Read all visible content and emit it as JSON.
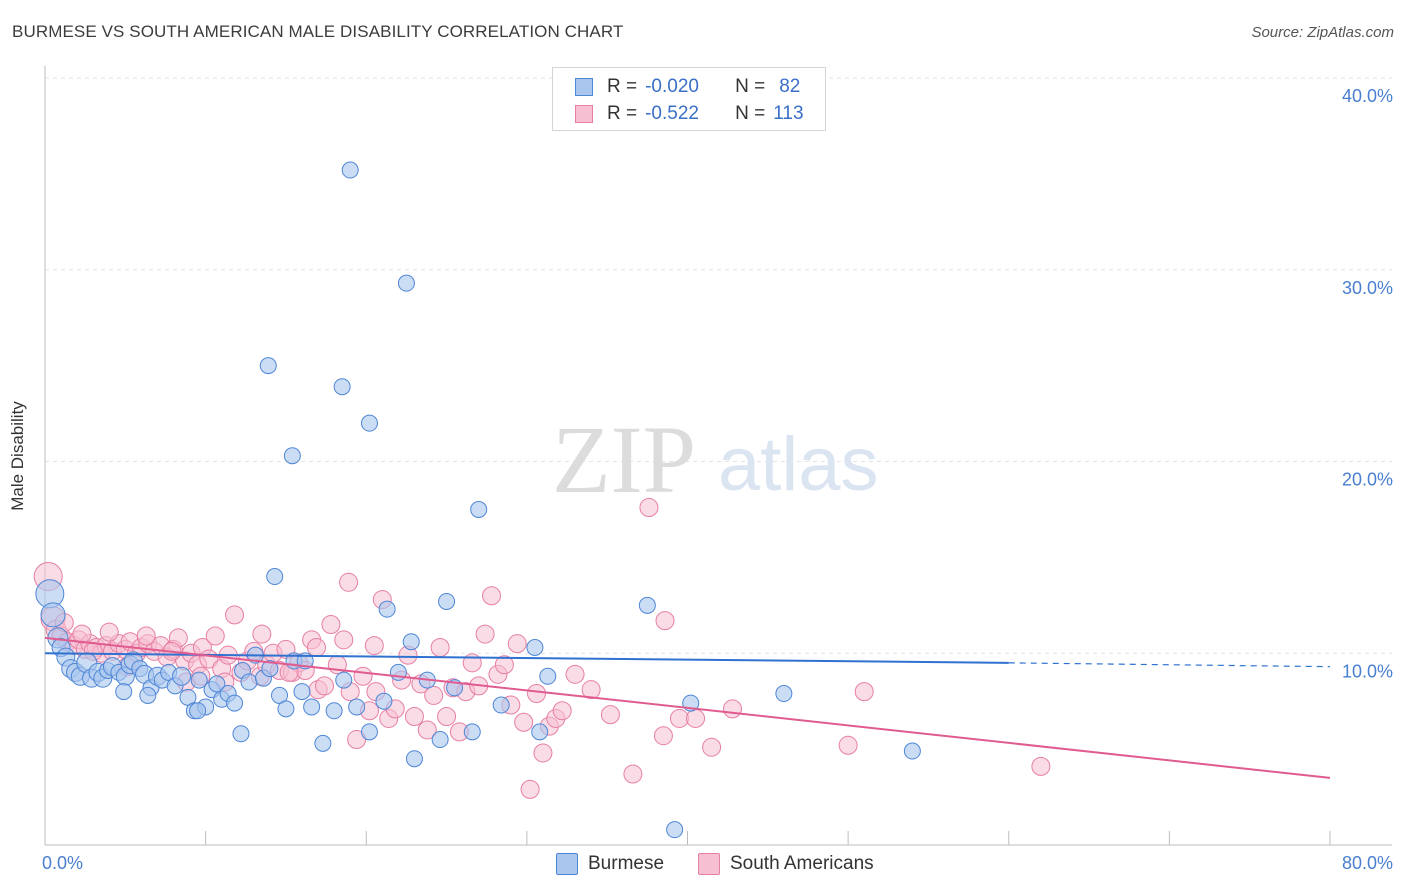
{
  "title": "BURMESE VS SOUTH AMERICAN MALE DISABILITY CORRELATION CHART",
  "source": "Source: ZipAtlas.com",
  "watermark": {
    "zip": "ZIP",
    "atlas": "atlas"
  },
  "legend": {
    "rows": [
      {
        "r_label": "R =",
        "r_value": "-0.020",
        "n_label": "N =",
        "n_value": "82"
      },
      {
        "r_label": "R =",
        "r_value": "-0.522",
        "n_label": "N =",
        "n_value": "113"
      }
    ]
  },
  "bottom_legend": {
    "burmese": "Burmese",
    "south_americans": "South Americans"
  },
  "colors": {
    "burmese_fill": "#a9c6ef",
    "burmese_stroke": "#4e86d6",
    "burmese_line": "#2f72d0",
    "sa_fill": "#f6bfd2",
    "sa_stroke": "#e77fa4",
    "sa_line": "#e05b8f",
    "axis_text": "#4a7fd0",
    "grid": "#e3e3e3"
  },
  "chart_data": {
    "type": "scatter",
    "title": "BURMESE VS SOUTH AMERICAN MALE DISABILITY CORRELATION CHART",
    "xlabel": "",
    "ylabel": "Male Disability",
    "xlim": [
      0,
      80
    ],
    "ylim": [
      0,
      40
    ],
    "x_tick_labels": [
      "0.0%",
      "80.0%"
    ],
    "y_ticks": [
      10,
      20,
      30,
      40
    ],
    "y_tick_labels": [
      "10.0%",
      "20.0%",
      "30.0%",
      "40.0%"
    ],
    "series": [
      {
        "name": "Burmese",
        "r": -0.02,
        "n": 82,
        "trend": {
          "x0": 0,
          "y0": 10.0,
          "x1": 60,
          "y1": 9.5,
          "dash_to_x": 80,
          "dash_to_y": 9.3
        },
        "points": [
          [
            0.3,
            13.1,
            14
          ],
          [
            0.5,
            12.0,
            12
          ],
          [
            0.8,
            10.8,
            10
          ],
          [
            1.0,
            10.3,
            9
          ],
          [
            1.3,
            9.8,
            9
          ],
          [
            1.6,
            9.2,
            9
          ],
          [
            1.9,
            9.0,
            9
          ],
          [
            2.2,
            8.8,
            9
          ],
          [
            2.6,
            9.5,
            10
          ],
          [
            2.9,
            8.7,
            9
          ],
          [
            3.3,
            9.0,
            9
          ],
          [
            3.6,
            8.7,
            9
          ],
          [
            3.9,
            9.1,
            8
          ],
          [
            4.2,
            9.3,
            9
          ],
          [
            4.6,
            9.0,
            8
          ],
          [
            5.0,
            8.8,
            9
          ],
          [
            5.3,
            9.4,
            9
          ],
          [
            5.5,
            9.6,
            9
          ],
          [
            5.9,
            9.2,
            8
          ],
          [
            6.2,
            8.9,
            9
          ],
          [
            6.6,
            8.2,
            8
          ],
          [
            7.0,
            8.8,
            9
          ],
          [
            7.3,
            8.6,
            8
          ],
          [
            7.7,
            9.0,
            8
          ],
          [
            8.1,
            8.3,
            8
          ],
          [
            8.5,
            8.8,
            9
          ],
          [
            8.9,
            7.7,
            8
          ],
          [
            9.3,
            7.0,
            8
          ],
          [
            9.6,
            8.6,
            8
          ],
          [
            10.0,
            7.2,
            8
          ],
          [
            10.4,
            8.1,
            8
          ],
          [
            10.7,
            8.4,
            8
          ],
          [
            11.0,
            7.6,
            8
          ],
          [
            11.4,
            7.9,
            8
          ],
          [
            11.8,
            7.4,
            8
          ],
          [
            12.3,
            9.1,
            8
          ],
          [
            12.7,
            8.5,
            8
          ],
          [
            13.1,
            9.9,
            8
          ],
          [
            13.6,
            8.7,
            8
          ],
          [
            14.0,
            9.2,
            8
          ],
          [
            14.6,
            7.8,
            8
          ],
          [
            15.0,
            7.1,
            8
          ],
          [
            15.5,
            9.6,
            8
          ],
          [
            16.0,
            8.0,
            8
          ],
          [
            16.6,
            7.2,
            8
          ],
          [
            17.3,
            5.3,
            8
          ],
          [
            18.0,
            7.0,
            8
          ],
          [
            18.6,
            8.6,
            8
          ],
          [
            19.4,
            7.2,
            8
          ],
          [
            20.2,
            5.9,
            8
          ],
          [
            21.1,
            7.5,
            8
          ],
          [
            22.0,
            9.0,
            8
          ],
          [
            22.8,
            10.6,
            8
          ],
          [
            23.8,
            8.6,
            8
          ],
          [
            24.6,
            5.5,
            8
          ],
          [
            25.5,
            8.2,
            8
          ],
          [
            26.6,
            5.9,
            8
          ],
          [
            28.4,
            7.3,
            8
          ],
          [
            30.5,
            10.3,
            8
          ],
          [
            31.3,
            8.8,
            8
          ],
          [
            14.3,
            14.0,
            8
          ],
          [
            13.9,
            25.0,
            8
          ],
          [
            15.4,
            20.3,
            8
          ],
          [
            18.5,
            23.9,
            8
          ],
          [
            20.2,
            22.0,
            8
          ],
          [
            22.5,
            29.3,
            8
          ],
          [
            19.0,
            35.2,
            8
          ],
          [
            27.0,
            17.5,
            8
          ],
          [
            25.0,
            12.7,
            8
          ],
          [
            21.3,
            12.3,
            8
          ],
          [
            37.5,
            12.5,
            8
          ],
          [
            39.2,
            0.8,
            8
          ],
          [
            40.2,
            7.4,
            8
          ],
          [
            46.0,
            7.9,
            8
          ],
          [
            54.0,
            4.9,
            8
          ],
          [
            30.8,
            5.9,
            8
          ],
          [
            23.0,
            4.5,
            8
          ],
          [
            12.2,
            5.8,
            8
          ],
          [
            6.4,
            7.8,
            8
          ],
          [
            4.9,
            8.0,
            8
          ],
          [
            9.5,
            7.0,
            8
          ],
          [
            16.2,
            9.6,
            8
          ]
        ]
      },
      {
        "name": "South Americans",
        "r": -0.522,
        "n": 113,
        "trend": {
          "x0": 0,
          "y0": 10.8,
          "x1": 80,
          "y1": 3.5
        },
        "points": [
          [
            0.2,
            14.0,
            14
          ],
          [
            0.5,
            11.8,
            12
          ],
          [
            0.7,
            11.2,
            10
          ],
          [
            1.0,
            10.9,
            9
          ],
          [
            1.4,
            10.6,
            9
          ],
          [
            1.8,
            10.4,
            9
          ],
          [
            2.1,
            10.7,
            9
          ],
          [
            2.5,
            10.2,
            9
          ],
          [
            2.8,
            10.5,
            9
          ],
          [
            3.2,
            10.3,
            9
          ],
          [
            3.5,
            10.0,
            9
          ],
          [
            3.8,
            10.4,
            9
          ],
          [
            4.2,
            10.1,
            9
          ],
          [
            4.6,
            10.5,
            9
          ],
          [
            5.0,
            10.2,
            9
          ],
          [
            5.3,
            10.6,
            9
          ],
          [
            5.7,
            10.0,
            9
          ],
          [
            6.0,
            10.3,
            9
          ],
          [
            6.4,
            10.5,
            9
          ],
          [
            6.8,
            10.1,
            9
          ],
          [
            7.2,
            10.4,
            9
          ],
          [
            7.6,
            9.8,
            9
          ],
          [
            8.0,
            10.2,
            9
          ],
          [
            8.3,
            10.8,
            9
          ],
          [
            8.7,
            9.6,
            9
          ],
          [
            9.1,
            10.0,
            9
          ],
          [
            9.5,
            9.4,
            9
          ],
          [
            9.8,
            10.3,
            9
          ],
          [
            10.2,
            9.7,
            9
          ],
          [
            10.6,
            10.9,
            9
          ],
          [
            11.0,
            9.2,
            9
          ],
          [
            11.4,
            9.9,
            9
          ],
          [
            11.8,
            12.0,
            9
          ],
          [
            12.2,
            9.0,
            9
          ],
          [
            12.6,
            9.6,
            9
          ],
          [
            13.0,
            10.1,
            9
          ],
          [
            13.4,
            8.8,
            9
          ],
          [
            13.8,
            9.4,
            9
          ],
          [
            14.2,
            10.0,
            9
          ],
          [
            14.6,
            9.1,
            9
          ],
          [
            15.0,
            10.2,
            9
          ],
          [
            15.4,
            9.0,
            9
          ],
          [
            15.8,
            9.5,
            9
          ],
          [
            16.2,
            9.1,
            9
          ],
          [
            16.6,
            10.7,
            9
          ],
          [
            17.0,
            8.1,
            9
          ],
          [
            17.4,
            8.3,
            9
          ],
          [
            17.8,
            11.5,
            9
          ],
          [
            18.2,
            9.4,
            9
          ],
          [
            18.6,
            10.7,
            9
          ],
          [
            19.0,
            8.0,
            9
          ],
          [
            19.4,
            5.5,
            9
          ],
          [
            19.8,
            8.8,
            9
          ],
          [
            20.2,
            7.0,
            9
          ],
          [
            20.6,
            8.0,
            9
          ],
          [
            21.0,
            12.8,
            9
          ],
          [
            21.4,
            6.6,
            9
          ],
          [
            21.8,
            7.1,
            9
          ],
          [
            22.2,
            8.6,
            9
          ],
          [
            22.6,
            9.9,
            9
          ],
          [
            23.0,
            6.7,
            9
          ],
          [
            23.4,
            8.4,
            9
          ],
          [
            23.8,
            6.0,
            9
          ],
          [
            24.2,
            7.8,
            9
          ],
          [
            24.6,
            10.3,
            9
          ],
          [
            25.0,
            6.7,
            9
          ],
          [
            25.4,
            8.2,
            9
          ],
          [
            25.8,
            5.9,
            9
          ],
          [
            26.2,
            8.0,
            9
          ],
          [
            26.6,
            9.5,
            9
          ],
          [
            27.0,
            8.3,
            9
          ],
          [
            27.4,
            11.0,
            9
          ],
          [
            27.8,
            13.0,
            9
          ],
          [
            28.2,
            8.9,
            9
          ],
          [
            28.6,
            9.4,
            9
          ],
          [
            29.0,
            7.3,
            9
          ],
          [
            29.4,
            10.5,
            9
          ],
          [
            29.8,
            6.4,
            9
          ],
          [
            30.2,
            2.9,
            9
          ],
          [
            30.6,
            7.9,
            9
          ],
          [
            31.0,
            4.8,
            9
          ],
          [
            31.4,
            6.2,
            9
          ],
          [
            31.8,
            6.6,
            9
          ],
          [
            32.2,
            7.0,
            9
          ],
          [
            33.0,
            8.9,
            9
          ],
          [
            34.0,
            8.1,
            9
          ],
          [
            35.2,
            6.8,
            9
          ],
          [
            36.6,
            3.7,
            9
          ],
          [
            37.6,
            17.6,
            9
          ],
          [
            38.6,
            11.7,
            9
          ],
          [
            38.5,
            5.7,
            9
          ],
          [
            39.5,
            6.6,
            9
          ],
          [
            40.5,
            6.6,
            9
          ],
          [
            41.5,
            5.1,
            9
          ],
          [
            42.8,
            7.1,
            9
          ],
          [
            50.0,
            5.2,
            9
          ],
          [
            51.0,
            8.0,
            9
          ],
          [
            62.0,
            4.1,
            9
          ],
          [
            18.9,
            13.7,
            9
          ],
          [
            15.2,
            9.0,
            9
          ],
          [
            8.8,
            8.5,
            9
          ],
          [
            7.9,
            10.1,
            9
          ],
          [
            6.3,
            10.9,
            9
          ],
          [
            5.1,
            9.3,
            9
          ],
          [
            3.0,
            10.1,
            9
          ],
          [
            1.2,
            11.6,
            9
          ],
          [
            2.3,
            11.0,
            9
          ],
          [
            4.0,
            11.1,
            9
          ],
          [
            13.5,
            11.0,
            9
          ],
          [
            16.9,
            10.3,
            9
          ],
          [
            11.2,
            8.5,
            9
          ],
          [
            9.7,
            8.8,
            9
          ],
          [
            20.5,
            10.4,
            9
          ]
        ]
      }
    ]
  }
}
